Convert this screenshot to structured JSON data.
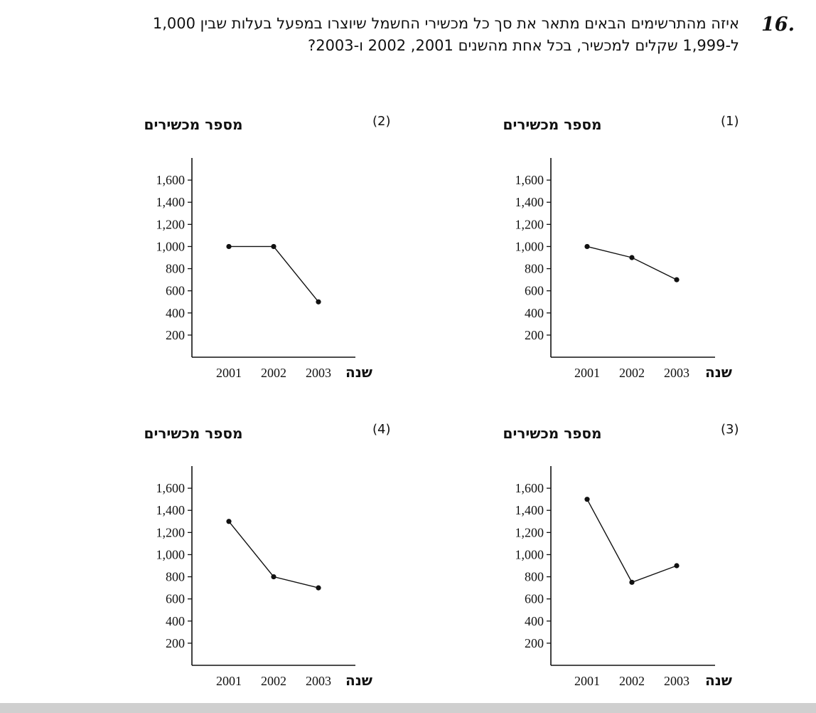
{
  "question": {
    "number": "16.",
    "text": "איזה מהתרשימים הבאים מתאר את סך כל מכשירי החשמל שיוצרו במפעל בעלות שבין 1,000 ל-1,999 שקלים למכשיר, בכל אחת מהשנים 2001, 2002 ו-2003?"
  },
  "chart_data": [
    {
      "type": "line",
      "label": "(1)",
      "ylabel": "מספר מכשירים",
      "xlabel": "שנה",
      "categories": [
        "2001",
        "2002",
        "2003"
      ],
      "values": [
        1000,
        900,
        700
      ],
      "yticks": [
        "200",
        "400",
        "600",
        "800",
        "1,000",
        "1,200",
        "1,400",
        "1,600"
      ],
      "ylim": [
        0,
        1800
      ]
    },
    {
      "type": "line",
      "label": "(2)",
      "ylabel": "מספר מכשירים",
      "xlabel": "שנה",
      "categories": [
        "2001",
        "2002",
        "2003"
      ],
      "values": [
        1000,
        1000,
        500
      ],
      "yticks": [
        "200",
        "400",
        "600",
        "800",
        "1,000",
        "1,200",
        "1,400",
        "1,600"
      ],
      "ylim": [
        0,
        1800
      ]
    },
    {
      "type": "line",
      "label": "(3)",
      "ylabel": "מספר מכשירים",
      "xlabel": "שנה",
      "categories": [
        "2001",
        "2002",
        "2003"
      ],
      "values": [
        1500,
        750,
        900
      ],
      "yticks": [
        "200",
        "400",
        "600",
        "800",
        "1,000",
        "1,200",
        "1,400",
        "1,600"
      ],
      "ylim": [
        0,
        1800
      ]
    },
    {
      "type": "line",
      "label": "(4)",
      "ylabel": "מספר מכשירים",
      "xlabel": "שנה",
      "categories": [
        "2001",
        "2002",
        "2003"
      ],
      "values": [
        1300,
        800,
        700
      ],
      "yticks": [
        "200",
        "400",
        "600",
        "800",
        "1,000",
        "1,200",
        "1,400",
        "1,600"
      ],
      "ylim": [
        0,
        1800
      ]
    }
  ]
}
